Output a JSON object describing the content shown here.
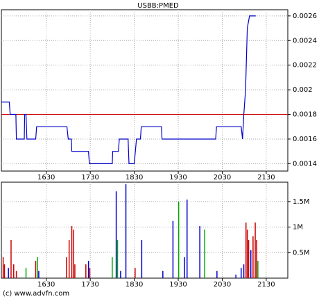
{
  "chart_data": [
    {
      "type": "line",
      "title": "USBB:PMED",
      "color": "#0000cc",
      "x": [
        1528,
        1546,
        1548,
        1561,
        1562,
        1580,
        1581,
        1584,
        1586,
        1606,
        1608,
        1677,
        1680,
        1687,
        1688,
        1726,
        1728,
        1780,
        1781,
        1794,
        1796,
        1816,
        1818,
        1830,
        1835,
        1844,
        1846,
        1892,
        1893,
        2015,
        2017,
        2073,
        2076,
        2079,
        2083,
        2087,
        2092,
        2106
      ],
      "values": [
        0.0019,
        0.0019,
        0.0018,
        0.0018,
        0.0016,
        0.0016,
        0.0018,
        0.0018,
        0.0016,
        0.0016,
        0.0017,
        0.0017,
        0.0016,
        0.0016,
        0.0015,
        0.0015,
        0.0014,
        0.0014,
        0.0015,
        0.0015,
        0.0016,
        0.0016,
        0.0014,
        0.0014,
        0.0016,
        0.0016,
        0.0017,
        0.0017,
        0.0016,
        0.0016,
        0.0017,
        0.0017,
        0.0016,
        0.0018,
        0.002,
        0.0025,
        0.0026,
        0.0026
      ],
      "reference_line": 0.0018,
      "reference_color": "#cc0000",
      "xlim": [
        1528,
        2179
      ],
      "ylim": [
        0.00134,
        0.00265
      ],
      "xticks": [
        1630,
        1730,
        1830,
        1930,
        2030,
        2130
      ],
      "yticks": [
        0.0014,
        0.0016,
        0.0018,
        0.002,
        0.0022,
        0.0024,
        0.0026
      ],
      "grid": true
    },
    {
      "type": "bar",
      "x": [
        1532,
        1535,
        1544,
        1550,
        1556,
        1562,
        1584,
        1606,
        1610,
        1613,
        1676,
        1682,
        1688,
        1692,
        1695,
        1720,
        1726,
        1729,
        1780,
        1789,
        1792,
        1799,
        1811,
        1832,
        1847,
        1895,
        1918,
        1931,
        1944,
        1950,
        1979,
        1990,
        2018,
        2061,
        2073,
        2079,
        2084,
        2087,
        2090,
        2095,
        2100,
        2105,
        2108,
        2111
      ],
      "values": [
        410000,
        270000,
        200000,
        750000,
        270000,
        140000,
        200000,
        340000,
        410000,
        140000,
        410000,
        750000,
        1020000,
        950000,
        270000,
        270000,
        340000,
        200000,
        410000,
        1700000,
        750000,
        140000,
        1840000,
        200000,
        750000,
        140000,
        1120000,
        1500000,
        410000,
        1540000,
        1020000,
        950000,
        140000,
        70000,
        200000,
        270000,
        1090000,
        950000,
        750000,
        550000,
        820000,
        1090000,
        750000,
        340000
      ],
      "colors": [
        "#cc0000",
        "#cc0000",
        "#0000cc",
        "#cc0000",
        "#cc0000",
        "#cc0000",
        "#00aa00",
        "#cc0000",
        "#00aa00",
        "#0000cc",
        "#cc0000",
        "#cc0000",
        "#cc0000",
        "#cc0000",
        "#cc0000",
        "#cc0000",
        "#0000cc",
        "#cc0000",
        "#00aa00",
        "#0000cc",
        "#00aa00",
        "#0000cc",
        "#0000cc",
        "#cc0000",
        "#0000cc",
        "#0000cc",
        "#0000cc",
        "#00aa00",
        "#0000cc",
        "#0000cc",
        "#0000cc",
        "#00aa00",
        "#0000cc",
        "#0000cc",
        "#0000cc",
        "#0000cc",
        "#cc0000",
        "#cc0000",
        "#cc0000",
        "#0000cc",
        "#cc0000",
        "#cc0000",
        "#cc0000",
        "#00aa00"
      ],
      "xlim": [
        1528,
        2179
      ],
      "ylim": [
        0,
        1880000
      ],
      "xticks": [
        1630,
        1730,
        1830,
        1930,
        2030,
        2130
      ],
      "yticks": [
        {
          "value": 500000,
          "label": "0.5M"
        },
        {
          "value": 1000000,
          "label": "1M"
        },
        {
          "value": 1500000,
          "label": "1.5M"
        }
      ],
      "grid": true
    }
  ],
  "footer": "(c) www.advfn.com"
}
